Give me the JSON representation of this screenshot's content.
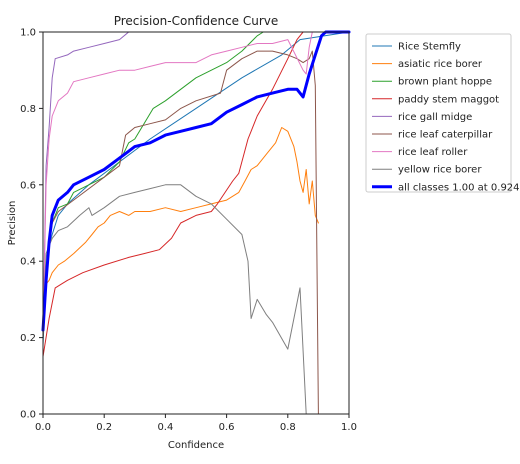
{
  "chart_data": {
    "type": "line",
    "title": "Precision-Confidence Curve",
    "xlabel": "Confidence",
    "ylabel": "Precision",
    "xlim": [
      0.0,
      1.0
    ],
    "ylim": [
      0.0,
      1.0
    ],
    "x_ticks": [
      "0.0",
      "0.2",
      "0.4",
      "0.6",
      "0.8",
      "1.0"
    ],
    "y_ticks": [
      "0.0",
      "0.2",
      "0.4",
      "0.6",
      "0.8",
      "1.0"
    ],
    "grid": false,
    "legend_position": "right, outside the axes",
    "series": [
      {
        "name": "Rice Stemfly",
        "color": "#1f77b4",
        "width": 1,
        "points": [
          [
            0.0,
            0.18
          ],
          [
            0.01,
            0.36
          ],
          [
            0.02,
            0.44
          ],
          [
            0.03,
            0.47
          ],
          [
            0.05,
            0.52
          ],
          [
            0.08,
            0.55
          ],
          [
            0.15,
            0.6
          ],
          [
            0.25,
            0.66
          ],
          [
            0.35,
            0.72
          ],
          [
            0.5,
            0.8
          ],
          [
            0.65,
            0.88
          ],
          [
            0.78,
            0.94
          ],
          [
            0.84,
            0.98
          ],
          [
            1.0,
            1.0
          ]
        ]
      },
      {
        "name": "asiatic rice borer",
        "color": "#ff7f0e",
        "width": 1,
        "points": [
          [
            0.0,
            0.27
          ],
          [
            0.01,
            0.34
          ],
          [
            0.02,
            0.35
          ],
          [
            0.03,
            0.37
          ],
          [
            0.05,
            0.39
          ],
          [
            0.07,
            0.4
          ],
          [
            0.1,
            0.42
          ],
          [
            0.14,
            0.45
          ],
          [
            0.16,
            0.47
          ],
          [
            0.18,
            0.49
          ],
          [
            0.2,
            0.5
          ],
          [
            0.22,
            0.52
          ],
          [
            0.25,
            0.53
          ],
          [
            0.28,
            0.52
          ],
          [
            0.3,
            0.53
          ],
          [
            0.35,
            0.53
          ],
          [
            0.4,
            0.54
          ],
          [
            0.45,
            0.53
          ],
          [
            0.5,
            0.54
          ],
          [
            0.55,
            0.55
          ],
          [
            0.6,
            0.56
          ],
          [
            0.64,
            0.58
          ],
          [
            0.66,
            0.61
          ],
          [
            0.68,
            0.64
          ],
          [
            0.7,
            0.65
          ],
          [
            0.73,
            0.68
          ],
          [
            0.76,
            0.71
          ],
          [
            0.78,
            0.75
          ],
          [
            0.8,
            0.74
          ],
          [
            0.82,
            0.7
          ],
          [
            0.83,
            0.66
          ],
          [
            0.84,
            0.61
          ],
          [
            0.85,
            0.58
          ],
          [
            0.86,
            0.64
          ],
          [
            0.87,
            0.55
          ],
          [
            0.88,
            0.61
          ],
          [
            0.89,
            0.52
          ],
          [
            0.9,
            0.5
          ]
        ]
      },
      {
        "name": "brown plant hoppe",
        "color": "#2ca02c",
        "width": 1,
        "points": [
          [
            0.0,
            0.2
          ],
          [
            0.01,
            0.36
          ],
          [
            0.02,
            0.44
          ],
          [
            0.03,
            0.5
          ],
          [
            0.05,
            0.54
          ],
          [
            0.08,
            0.55
          ],
          [
            0.1,
            0.58
          ],
          [
            0.15,
            0.6
          ],
          [
            0.2,
            0.62
          ],
          [
            0.25,
            0.66
          ],
          [
            0.28,
            0.71
          ],
          [
            0.3,
            0.72
          ],
          [
            0.33,
            0.76
          ],
          [
            0.36,
            0.8
          ],
          [
            0.4,
            0.82
          ],
          [
            0.45,
            0.85
          ],
          [
            0.5,
            0.88
          ],
          [
            0.55,
            0.9
          ],
          [
            0.6,
            0.92
          ],
          [
            0.65,
            0.95
          ],
          [
            0.7,
            0.99
          ],
          [
            0.72,
            1.0
          ],
          [
            1.0,
            1.0
          ]
        ]
      },
      {
        "name": "paddy stem maggot",
        "color": "#d62728",
        "width": 1,
        "points": [
          [
            0.0,
            0.15
          ],
          [
            0.02,
            0.25
          ],
          [
            0.04,
            0.33
          ],
          [
            0.06,
            0.34
          ],
          [
            0.08,
            0.35
          ],
          [
            0.13,
            0.37
          ],
          [
            0.2,
            0.39
          ],
          [
            0.28,
            0.41
          ],
          [
            0.33,
            0.42
          ],
          [
            0.38,
            0.43
          ],
          [
            0.42,
            0.46
          ],
          [
            0.45,
            0.5
          ],
          [
            0.5,
            0.52
          ],
          [
            0.55,
            0.53
          ],
          [
            0.57,
            0.55
          ],
          [
            0.62,
            0.61
          ],
          [
            0.64,
            0.63
          ],
          [
            0.67,
            0.72
          ],
          [
            0.68,
            0.74
          ],
          [
            0.7,
            0.78
          ],
          [
            0.75,
            0.85
          ],
          [
            0.8,
            0.93
          ],
          [
            0.83,
            0.98
          ],
          [
            0.85,
            1.0
          ],
          [
            1.0,
            1.0
          ]
        ]
      },
      {
        "name": "rice gall midge",
        "color": "#9467bd",
        "width": 1,
        "points": [
          [
            0.0,
            0.2
          ],
          [
            0.01,
            0.65
          ],
          [
            0.02,
            0.75
          ],
          [
            0.03,
            0.88
          ],
          [
            0.04,
            0.93
          ],
          [
            0.08,
            0.94
          ],
          [
            0.1,
            0.95
          ],
          [
            0.15,
            0.96
          ],
          [
            0.2,
            0.97
          ],
          [
            0.25,
            0.98
          ],
          [
            0.28,
            1.0
          ],
          [
            1.0,
            1.0
          ]
        ]
      },
      {
        "name": "rice leaf caterpillar",
        "color": "#8c564b",
        "width": 1,
        "points": [
          [
            0.0,
            0.2
          ],
          [
            0.01,
            0.38
          ],
          [
            0.02,
            0.45
          ],
          [
            0.03,
            0.5
          ],
          [
            0.05,
            0.53
          ],
          [
            0.1,
            0.56
          ],
          [
            0.2,
            0.62
          ],
          [
            0.25,
            0.65
          ],
          [
            0.27,
            0.73
          ],
          [
            0.3,
            0.75
          ],
          [
            0.35,
            0.76
          ],
          [
            0.4,
            0.77
          ],
          [
            0.45,
            0.8
          ],
          [
            0.5,
            0.82
          ],
          [
            0.58,
            0.84
          ],
          [
            0.6,
            0.9
          ],
          [
            0.65,
            0.93
          ],
          [
            0.7,
            0.95
          ],
          [
            0.75,
            0.95
          ],
          [
            0.8,
            0.94
          ],
          [
            0.83,
            0.93
          ],
          [
            0.85,
            0.92
          ],
          [
            0.87,
            0.93
          ],
          [
            0.88,
            0.95
          ],
          [
            0.89,
            0.86
          ],
          [
            0.9,
            0.0
          ]
        ]
      },
      {
        "name": "rice leaf roller",
        "color": "#e377c2",
        "width": 1,
        "points": [
          [
            0.0,
            0.2
          ],
          [
            0.01,
            0.6
          ],
          [
            0.02,
            0.72
          ],
          [
            0.03,
            0.78
          ],
          [
            0.05,
            0.82
          ],
          [
            0.08,
            0.84
          ],
          [
            0.1,
            0.87
          ],
          [
            0.15,
            0.88
          ],
          [
            0.2,
            0.89
          ],
          [
            0.25,
            0.9
          ],
          [
            0.3,
            0.9
          ],
          [
            0.35,
            0.91
          ],
          [
            0.4,
            0.92
          ],
          [
            0.45,
            0.92
          ],
          [
            0.5,
            0.92
          ],
          [
            0.55,
            0.94
          ],
          [
            0.6,
            0.95
          ],
          [
            0.65,
            0.96
          ],
          [
            0.7,
            0.97
          ],
          [
            0.75,
            0.97
          ],
          [
            0.8,
            0.98
          ],
          [
            0.85,
            0.9
          ],
          [
            0.86,
            0.89
          ],
          [
            0.87,
            0.96
          ],
          [
            0.88,
            1.0
          ],
          [
            1.0,
            1.0
          ]
        ]
      },
      {
        "name": "yellow rice borer",
        "color": "#7f7f7f",
        "width": 1,
        "points": [
          [
            0.0,
            0.25
          ],
          [
            0.01,
            0.42
          ],
          [
            0.02,
            0.44
          ],
          [
            0.03,
            0.46
          ],
          [
            0.05,
            0.48
          ],
          [
            0.08,
            0.49
          ],
          [
            0.12,
            0.52
          ],
          [
            0.15,
            0.54
          ],
          [
            0.16,
            0.52
          ],
          [
            0.2,
            0.54
          ],
          [
            0.25,
            0.57
          ],
          [
            0.3,
            0.58
          ],
          [
            0.35,
            0.59
          ],
          [
            0.4,
            0.6
          ],
          [
            0.45,
            0.6
          ],
          [
            0.5,
            0.57
          ],
          [
            0.55,
            0.55
          ],
          [
            0.6,
            0.51
          ],
          [
            0.65,
            0.47
          ],
          [
            0.67,
            0.4
          ],
          [
            0.68,
            0.25
          ],
          [
            0.7,
            0.3
          ],
          [
            0.73,
            0.26
          ],
          [
            0.75,
            0.24
          ],
          [
            0.8,
            0.17
          ],
          [
            0.84,
            0.33
          ],
          [
            0.86,
            0.0
          ]
        ]
      },
      {
        "name": "all classes 1.00 at 0.924",
        "color": "#0000ff",
        "width": 3,
        "points": [
          [
            0.0,
            0.22
          ],
          [
            0.01,
            0.35
          ],
          [
            0.02,
            0.45
          ],
          [
            0.03,
            0.52
          ],
          [
            0.05,
            0.56
          ],
          [
            0.08,
            0.58
          ],
          [
            0.1,
            0.6
          ],
          [
            0.15,
            0.62
          ],
          [
            0.2,
            0.64
          ],
          [
            0.25,
            0.67
          ],
          [
            0.3,
            0.7
          ],
          [
            0.35,
            0.71
          ],
          [
            0.4,
            0.73
          ],
          [
            0.45,
            0.74
          ],
          [
            0.5,
            0.75
          ],
          [
            0.55,
            0.76
          ],
          [
            0.6,
            0.79
          ],
          [
            0.65,
            0.81
          ],
          [
            0.7,
            0.83
          ],
          [
            0.75,
            0.84
          ],
          [
            0.8,
            0.85
          ],
          [
            0.83,
            0.85
          ],
          [
            0.85,
            0.83
          ],
          [
            0.87,
            0.89
          ],
          [
            0.89,
            0.94
          ],
          [
            0.91,
            0.99
          ],
          [
            0.924,
            1.0
          ],
          [
            1.0,
            1.0
          ]
        ]
      }
    ]
  }
}
